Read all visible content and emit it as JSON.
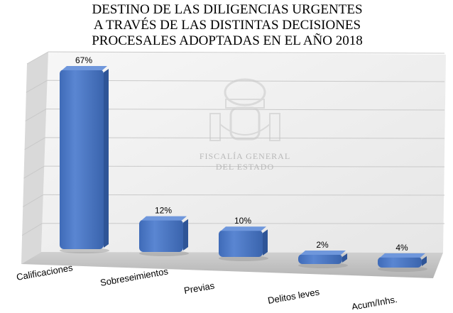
{
  "chart_data": {
    "type": "bar",
    "title_lines": [
      "DESTINO DE LAS DILIGENCIAS URGENTES",
      "A TRAVÉS DE LAS DISTINTAS DECISIONES",
      "PROCESALES ADOPTADAS EN EL AÑO 2018"
    ],
    "categories": [
      "Calificaciones",
      "Sobreseimientos",
      "Previas",
      "Delitos leves",
      "Acum/Inhs."
    ],
    "values": [
      67,
      12,
      10,
      2,
      4
    ],
    "data_labels": [
      "67%",
      "12%",
      "10%",
      "2%",
      "4%"
    ],
    "ylim": [
      0,
      70
    ],
    "grid": true,
    "style": "3d",
    "colors": {
      "bar": "#4a76c4",
      "bar_top": "#6f97dc",
      "bar_side": "#2f5597",
      "wall": "#ececec",
      "floor": "#bdbdbd"
    },
    "watermark": {
      "text_lines": [
        "FISCALÍA GENERAL",
        "DEL ESTADO"
      ]
    }
  }
}
